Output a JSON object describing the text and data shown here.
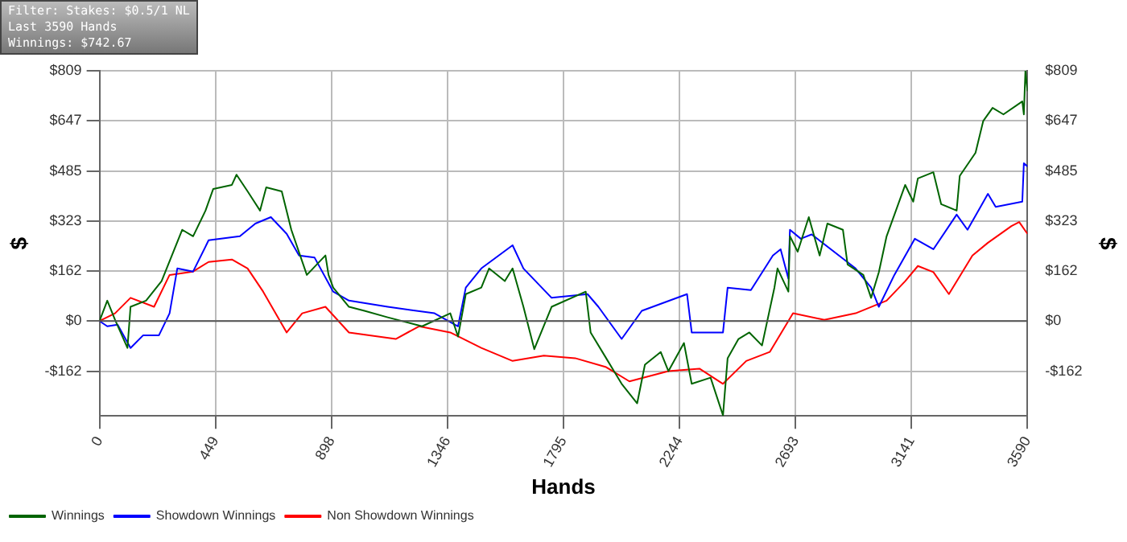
{
  "chart_data": {
    "type": "line",
    "xlabel": "Hands",
    "ylabel": "$",
    "y2label": "$",
    "annotations": [
      "Filter: Stakes: $0.5/1 NL",
      "Last  3590 Hands",
      "Winnings: $742.67"
    ],
    "xlim": [
      0,
      3590
    ],
    "xticks": [
      0,
      449,
      898,
      1346,
      1795,
      2244,
      2693,
      3141,
      3590
    ],
    "ylim": [
      -307,
      809
    ],
    "yticks": [
      {
        "value": -162,
        "label": "-$162"
      },
      {
        "value": 0,
        "label": "$0"
      },
      {
        "value": 162,
        "label": "$162"
      },
      {
        "value": 323,
        "label": "$323"
      },
      {
        "value": 485,
        "label": "$485"
      },
      {
        "value": 647,
        "label": "$647"
      },
      {
        "value": 809,
        "label": "$809"
      }
    ],
    "y2lim": [
      -307,
      809
    ],
    "y2ticks": [
      {
        "value": -162,
        "label": "-$162"
      },
      {
        "value": 0,
        "label": "$0"
      },
      {
        "value": 162,
        "label": "$162"
      },
      {
        "value": 323,
        "label": "$323"
      },
      {
        "value": 485,
        "label": "$485"
      },
      {
        "value": 647,
        "label": "$647"
      },
      {
        "value": 809,
        "label": "$809"
      }
    ],
    "ref_lines": [
      {
        "axis": "y",
        "value": 0,
        "color": "#555555"
      }
    ],
    "grid": true,
    "legend": "bottom",
    "marker": "none",
    "line_style": "solid",
    "series": [
      {
        "name": "Winnings",
        "color": "#006400",
        "x": [
          0,
          30,
          60,
          108,
          120,
          180,
          240,
          320,
          362,
          410,
          440,
          512,
          530,
          573,
          621,
          645,
          705,
          742,
          802,
          874,
          886,
          904,
          965,
          1025,
          1115,
          1248,
          1357,
          1387,
          1417,
          1477,
          1507,
          1568,
          1598,
          1640,
          1682,
          1749,
          1881,
          1900,
          1960,
          2020,
          2080,
          2110,
          2171,
          2201,
          2261,
          2291,
          2364,
          2412,
          2430,
          2472,
          2514,
          2563,
          2611,
          2623,
          2665,
          2671,
          2701,
          2744,
          2786,
          2816,
          2876,
          2894,
          2955,
          2985,
          3015,
          3045,
          3117,
          3148,
          3166,
          3226,
          3256,
          3316,
          3328,
          3389,
          3419,
          3455,
          3497,
          3570,
          3576,
          3582,
          3590
        ],
        "values": [
          0,
          66,
          4,
          -87,
          46,
          66,
          129,
          295,
          274,
          357,
          427,
          440,
          473,
          419,
          357,
          432,
          419,
          295,
          149,
          212,
          149,
          108,
          46,
          33,
          12,
          -17,
          25,
          -50,
          87,
          108,
          170,
          129,
          170,
          46,
          -91,
          46,
          95,
          -37,
          -120,
          -203,
          -266,
          -141,
          -100,
          -162,
          -71,
          -203,
          -183,
          -305,
          -120,
          -58,
          -37,
          -79,
          108,
          170,
          95,
          274,
          224,
          336,
          212,
          315,
          295,
          183,
          149,
          75,
          158,
          274,
          440,
          386,
          461,
          481,
          378,
          357,
          469,
          544,
          647,
          689,
          668,
          710,
          668,
          809,
          743
        ]
      },
      {
        "name": "Showdown Winnings",
        "color": "#0000ff",
        "x": [
          0,
          30,
          70,
          120,
          169,
          230,
          271,
          301,
          362,
          422,
          543,
          603,
          663,
          724,
          772,
          832,
          904,
          965,
          1115,
          1296,
          1387,
          1417,
          1477,
          1598,
          1640,
          1749,
          1888,
          1930,
          2020,
          2098,
          2273,
          2291,
          2412,
          2430,
          2520,
          2605,
          2635,
          2665,
          2671,
          2713,
          2755,
          2925,
          2985,
          3015,
          3075,
          3154,
          3226,
          3316,
          3358,
          3437,
          3467,
          3570,
          3576,
          3590
        ],
        "values": [
          0,
          -17,
          -12,
          -87,
          -46,
          -46,
          25,
          170,
          160,
          261,
          274,
          315,
          336,
          282,
          212,
          205,
          95,
          66,
          46,
          25,
          -17,
          108,
          170,
          245,
          170,
          75,
          87,
          46,
          -58,
          33,
          87,
          -37,
          -37,
          108,
          100,
          212,
          232,
          137,
          295,
          266,
          280,
          170,
          108,
          46,
          149,
          266,
          232,
          344,
          295,
          411,
          369,
          386,
          510,
          500
        ]
      },
      {
        "name": "Non Showdown Winnings",
        "color": "#ff0000",
        "x": [
          0,
          60,
          120,
          211,
          271,
          362,
          422,
          512,
          573,
          633,
          724,
          784,
          874,
          965,
          1146,
          1236,
          1357,
          1477,
          1598,
          1719,
          1840,
          1960,
          2050,
          2201,
          2321,
          2412,
          2502,
          2593,
          2683,
          2804,
          2925,
          3045,
          3117,
          3166,
          3226,
          3286,
          3377,
          3437,
          3528,
          3558,
          3590
        ],
        "values": [
          0,
          25,
          75,
          46,
          149,
          160,
          191,
          199,
          170,
          95,
          -37,
          25,
          46,
          -37,
          -58,
          -17,
          -37,
          -87,
          -129,
          -112,
          -120,
          -149,
          -195,
          -162,
          -154,
          -203,
          -129,
          -100,
          25,
          4,
          25,
          66,
          129,
          178,
          158,
          87,
          212,
          253,
          307,
          320,
          282
        ]
      }
    ]
  }
}
